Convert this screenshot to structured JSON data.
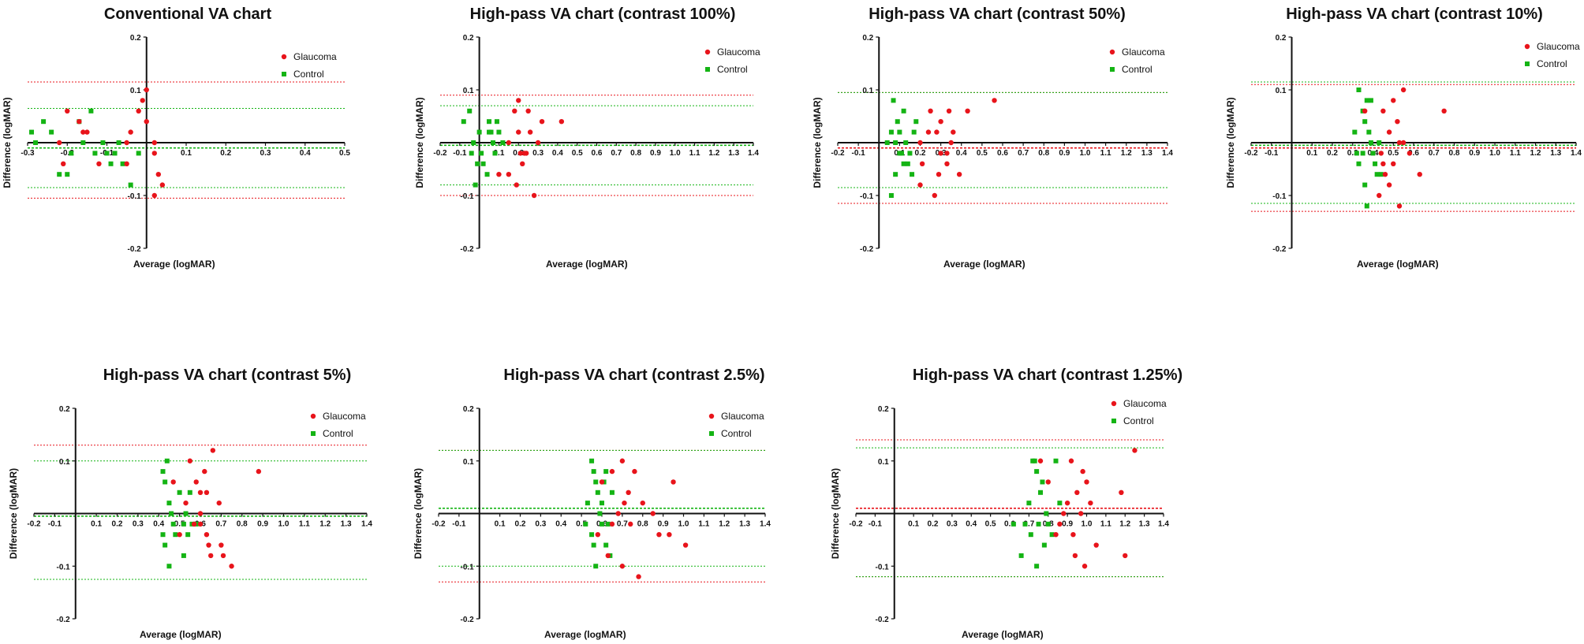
{
  "colors": {
    "glaucoma": "#e8141b",
    "control": "#14b414",
    "axis": "#111111"
  },
  "legend": {
    "glaucoma": "Glaucoma",
    "control": "Control"
  },
  "chart_data": [
    {
      "type": "scatter",
      "title": "Conventional VA chart",
      "xlabel": "Average (logMAR)",
      "ylabel": "Difference (logMAR)",
      "xlim": [
        -0.3,
        0.5
      ],
      "ylim": [
        -0.2,
        0.2
      ],
      "xticks": [
        "-0.3",
        "-0.2",
        "-0.1",
        "0.1",
        "0.2",
        "0.3",
        "0.4",
        "0.5"
      ],
      "yticks": [
        "-0.2",
        "-0.1",
        "0.1",
        "0.2"
      ],
      "glaucoma_points": [
        [
          0.0,
          0.1
        ],
        [
          -0.01,
          0.08
        ],
        [
          -0.02,
          0.06
        ],
        [
          0.0,
          0.04
        ],
        [
          -0.04,
          0.02
        ],
        [
          -0.05,
          0.0
        ],
        [
          0.02,
          0.0
        ],
        [
          0.02,
          -0.02
        ],
        [
          -0.05,
          -0.04
        ],
        [
          0.03,
          -0.06
        ],
        [
          0.04,
          -0.08
        ],
        [
          0.02,
          -0.1
        ],
        [
          -0.2,
          0.06
        ],
        [
          -0.17,
          0.04
        ],
        [
          -0.15,
          0.02
        ],
        [
          -0.21,
          -0.04
        ],
        [
          -0.12,
          -0.04
        ],
        [
          -0.16,
          0.02
        ],
        [
          -0.22,
          0.0
        ]
      ],
      "control_points": [
        [
          -0.29,
          0.02
        ],
        [
          -0.28,
          0.0
        ],
        [
          -0.26,
          0.04
        ],
        [
          -0.24,
          0.02
        ],
        [
          -0.22,
          -0.06
        ],
        [
          -0.2,
          -0.06
        ],
        [
          -0.19,
          -0.02
        ],
        [
          -0.17,
          0.04
        ],
        [
          -0.16,
          0.0
        ],
        [
          -0.14,
          0.06
        ],
        [
          -0.13,
          -0.02
        ],
        [
          -0.11,
          0.0
        ],
        [
          -0.09,
          -0.04
        ],
        [
          -0.08,
          -0.02
        ],
        [
          -0.06,
          -0.04
        ],
        [
          -0.04,
          -0.08
        ],
        [
          -0.02,
          -0.02
        ],
        [
          -0.1,
          -0.02
        ],
        [
          -0.07,
          0.0
        ]
      ],
      "glaucoma_mean": 0.0,
      "glaucoma_loa": [
        0.115,
        -0.105
      ],
      "control_mean": -0.01,
      "control_loa": [
        0.065,
        -0.085
      ],
      "legend_position": "top-right"
    },
    {
      "type": "scatter",
      "title": "High-pass VA chart (contrast 100%)",
      "xlabel": "Average (logMAR)",
      "ylabel": "Difference (logMAR)",
      "xlim": [
        -0.2,
        1.4
      ],
      "ylim": [
        -0.2,
        0.2
      ],
      "xticks": [
        "-0.2",
        "-0.1",
        "0.1",
        "0.2",
        "0.3",
        "0.4",
        "0.5",
        "0.6",
        "0.7",
        "0.8",
        "0.9",
        "1.0",
        "1.1",
        "1.2",
        "1.3",
        "1.4"
      ],
      "yticks": [
        "-0.2",
        "-0.1",
        "0.1",
        "0.2"
      ],
      "glaucoma_points": [
        [
          0.2,
          0.08
        ],
        [
          0.18,
          0.06
        ],
        [
          0.25,
          0.06
        ],
        [
          0.32,
          0.04
        ],
        [
          0.42,
          0.04
        ],
        [
          0.2,
          0.02
        ],
        [
          0.26,
          0.02
        ],
        [
          0.3,
          0.0
        ],
        [
          0.15,
          0.0
        ],
        [
          0.21,
          -0.02
        ],
        [
          0.24,
          -0.02
        ],
        [
          0.1,
          -0.06
        ],
        [
          0.19,
          -0.08
        ],
        [
          0.28,
          -0.1
        ],
        [
          0.22,
          -0.04
        ],
        [
          0.15,
          -0.06
        ],
        [
          0.23,
          -0.02
        ]
      ],
      "control_points": [
        [
          -0.08,
          0.04
        ],
        [
          -0.05,
          0.06
        ],
        [
          -0.03,
          0.0
        ],
        [
          -0.04,
          -0.02
        ],
        [
          -0.02,
          -0.08
        ],
        [
          0.0,
          0.02
        ],
        [
          0.02,
          -0.04
        ],
        [
          0.04,
          -0.06
        ],
        [
          0.05,
          0.04
        ],
        [
          0.06,
          0.02
        ],
        [
          0.07,
          0.0
        ],
        [
          0.08,
          -0.02
        ],
        [
          0.1,
          0.02
        ],
        [
          0.12,
          0.0
        ],
        [
          0.05,
          0.02
        ],
        [
          0.09,
          0.04
        ],
        [
          0.01,
          -0.02
        ],
        [
          -0.01,
          -0.04
        ]
      ],
      "glaucoma_mean": 0.0,
      "glaucoma_loa": [
        0.09,
        -0.1
      ],
      "control_mean": -0.005,
      "control_loa": [
        0.07,
        -0.08
      ],
      "legend_position": "top-right"
    },
    {
      "type": "scatter",
      "title": "High-pass VA chart (contrast 50%)",
      "xlabel": "Average (logMAR)",
      "ylabel": "Difference (logMAR)",
      "xlim": [
        -0.2,
        1.4
      ],
      "ylim": [
        -0.2,
        0.2
      ],
      "xticks": [
        "-0.2",
        "-0.1",
        "0.1",
        "0.2",
        "0.3",
        "0.4",
        "0.5",
        "0.6",
        "0.7",
        "0.8",
        "0.9",
        "1.0",
        "1.1",
        "1.2",
        "1.3",
        "1.4"
      ],
      "yticks": [
        "-0.2",
        "-0.1",
        "0.1",
        "0.2"
      ],
      "glaucoma_points": [
        [
          0.56,
          0.08
        ],
        [
          0.43,
          0.06
        ],
        [
          0.34,
          0.06
        ],
        [
          0.25,
          0.06
        ],
        [
          0.3,
          0.04
        ],
        [
          0.28,
          0.02
        ],
        [
          0.35,
          0.0
        ],
        [
          0.33,
          -0.02
        ],
        [
          0.3,
          -0.02
        ],
        [
          0.21,
          -0.04
        ],
        [
          0.33,
          -0.04
        ],
        [
          0.39,
          -0.06
        ],
        [
          0.2,
          -0.08
        ],
        [
          0.27,
          -0.1
        ],
        [
          0.24,
          0.02
        ],
        [
          0.2,
          0.0
        ],
        [
          0.36,
          0.02
        ],
        [
          0.29,
          -0.06
        ]
      ],
      "control_points": [
        [
          0.07,
          0.08
        ],
        [
          0.06,
          0.02
        ],
        [
          0.08,
          0.0
        ],
        [
          0.09,
          0.04
        ],
        [
          0.1,
          0.02
        ],
        [
          0.11,
          -0.02
        ],
        [
          0.12,
          0.06
        ],
        [
          0.13,
          0.0
        ],
        [
          0.14,
          -0.04
        ],
        [
          0.15,
          -0.02
        ],
        [
          0.16,
          -0.06
        ],
        [
          0.06,
          -0.1
        ],
        [
          0.08,
          -0.06
        ],
        [
          0.12,
          -0.04
        ],
        [
          0.18,
          0.04
        ],
        [
          0.17,
          0.02
        ],
        [
          0.1,
          -0.02
        ],
        [
          0.04,
          0.0
        ]
      ],
      "glaucoma_mean": -0.01,
      "glaucoma_loa": [
        0.095,
        -0.115
      ],
      "control_mean": 0.0,
      "control_loa": [
        0.095,
        -0.085
      ],
      "legend_position": "top-right"
    },
    {
      "type": "scatter",
      "title": "High-pass VA chart (contrast 10%)",
      "xlabel": "Average (logMAR)",
      "ylabel": "Difference (logMAR)",
      "xlim": [
        -0.2,
        1.4
      ],
      "ylim": [
        -0.2,
        0.2
      ],
      "xticks": [
        "-0.2",
        "-0.1",
        "0.1",
        "0.2",
        "0.3",
        "0.4",
        "0.5",
        "0.6",
        "0.7",
        "0.8",
        "0.9",
        "1.0",
        "1.1",
        "1.2",
        "1.3",
        "1.4"
      ],
      "yticks": [
        "-0.2",
        "-0.1",
        "0.1",
        "0.2"
      ],
      "glaucoma_points": [
        [
          0.55,
          0.1
        ],
        [
          0.75,
          0.06
        ],
        [
          0.5,
          0.08
        ],
        [
          0.52,
          0.04
        ],
        [
          0.45,
          0.06
        ],
        [
          0.48,
          0.02
        ],
        [
          0.53,
          0.0
        ],
        [
          0.55,
          0.0
        ],
        [
          0.45,
          -0.04
        ],
        [
          0.5,
          -0.04
        ],
        [
          0.46,
          -0.06
        ],
        [
          0.63,
          -0.06
        ],
        [
          0.48,
          -0.08
        ],
        [
          0.43,
          -0.1
        ],
        [
          0.53,
          -0.12
        ],
        [
          0.36,
          0.06
        ],
        [
          0.44,
          -0.02
        ],
        [
          0.58,
          -0.02
        ]
      ],
      "control_points": [
        [
          0.31,
          0.02
        ],
        [
          0.33,
          0.1
        ],
        [
          0.35,
          0.06
        ],
        [
          0.36,
          0.04
        ],
        [
          0.37,
          0.08
        ],
        [
          0.38,
          0.02
        ],
        [
          0.39,
          0.0
        ],
        [
          0.32,
          -0.02
        ],
        [
          0.33,
          -0.04
        ],
        [
          0.36,
          -0.08
        ],
        [
          0.37,
          -0.12
        ],
        [
          0.4,
          -0.02
        ],
        [
          0.41,
          -0.04
        ],
        [
          0.42,
          -0.06
        ],
        [
          0.43,
          0.0
        ],
        [
          0.39,
          0.08
        ],
        [
          0.35,
          -0.02
        ],
        [
          0.44,
          -0.06
        ]
      ],
      "glaucoma_mean": -0.01,
      "glaucoma_loa": [
        0.11,
        -0.13
      ],
      "control_mean": -0.005,
      "control_loa": [
        0.115,
        -0.115
      ],
      "legend_position": "top-right"
    },
    {
      "type": "scatter",
      "title": "High-pass VA chart (contrast 5%)",
      "xlabel": "Average (logMAR)",
      "ylabel": "Difference (logMAR)",
      "xlim": [
        -0.2,
        1.4
      ],
      "ylim": [
        -0.2,
        0.2
      ],
      "xticks": [
        "-0.2",
        "-0.1",
        "0.1",
        "0.2",
        "0.3",
        "0.4",
        "0.5",
        "0.6",
        "0.7",
        "0.8",
        "0.9",
        "1.0",
        "1.1",
        "1.2",
        "1.3",
        "1.4"
      ],
      "yticks": [
        "-0.2",
        "-0.1",
        "0.1",
        "0.2"
      ],
      "glaucoma_points": [
        [
          0.66,
          0.12
        ],
        [
          0.88,
          0.08
        ],
        [
          0.55,
          0.1
        ],
        [
          0.62,
          0.08
        ],
        [
          0.58,
          0.06
        ],
        [
          0.6,
          0.04
        ],
        [
          0.63,
          0.04
        ],
        [
          0.69,
          0.02
        ],
        [
          0.53,
          0.02
        ],
        [
          0.57,
          -0.02
        ],
        [
          0.6,
          -0.02
        ],
        [
          0.63,
          -0.04
        ],
        [
          0.64,
          -0.06
        ],
        [
          0.7,
          -0.06
        ],
        [
          0.65,
          -0.08
        ],
        [
          0.71,
          -0.08
        ],
        [
          0.75,
          -0.1
        ],
        [
          0.47,
          0.06
        ],
        [
          0.5,
          -0.04
        ],
        [
          0.6,
          0.0
        ]
      ],
      "control_points": [
        [
          0.42,
          0.08
        ],
        [
          0.44,
          0.1
        ],
        [
          0.43,
          0.06
        ],
        [
          0.45,
          0.02
        ],
        [
          0.46,
          0.0
        ],
        [
          0.47,
          -0.02
        ],
        [
          0.48,
          -0.04
        ],
        [
          0.5,
          0.04
        ],
        [
          0.52,
          -0.02
        ],
        [
          0.53,
          0.0
        ],
        [
          0.55,
          0.04
        ],
        [
          0.56,
          -0.02
        ],
        [
          0.42,
          -0.04
        ],
        [
          0.43,
          -0.06
        ],
        [
          0.45,
          -0.1
        ],
        [
          0.52,
          -0.08
        ],
        [
          0.54,
          -0.04
        ],
        [
          0.58,
          -0.02
        ]
      ],
      "glaucoma_mean": 0.0,
      "glaucoma_loa": [
        0.13,
        -0.125
      ],
      "control_mean": -0.005,
      "control_loa": [
        0.1,
        -0.125
      ],
      "legend_position": "top-right"
    },
    {
      "type": "scatter",
      "title": "High-pass VA chart (contrast 2.5%)",
      "xlabel": "Average (logMAR)",
      "ylabel": "Difference (logMAR)",
      "xlim": [
        -0.2,
        1.4
      ],
      "ylim": [
        -0.2,
        0.2
      ],
      "xticks": [
        "-0.2",
        "-0.1",
        "0.1",
        "0.2",
        "0.3",
        "0.4",
        "0.5",
        "0.6",
        "0.7",
        "0.8",
        "0.9",
        "1.0",
        "1.1",
        "1.2",
        "1.3",
        "1.4"
      ],
      "yticks": [
        "-0.2",
        "-0.1",
        "0.1",
        "0.2"
      ],
      "glaucoma_points": [
        [
          0.7,
          0.1
        ],
        [
          0.95,
          0.06
        ],
        [
          0.65,
          0.08
        ],
        [
          0.76,
          0.08
        ],
        [
          0.6,
          0.06
        ],
        [
          0.73,
          0.04
        ],
        [
          0.71,
          0.02
        ],
        [
          0.8,
          0.02
        ],
        [
          0.68,
          0.0
        ],
        [
          0.85,
          0.0
        ],
        [
          0.65,
          -0.02
        ],
        [
          0.88,
          -0.04
        ],
        [
          0.93,
          -0.04
        ],
        [
          1.01,
          -0.06
        ],
        [
          0.63,
          -0.08
        ],
        [
          0.7,
          -0.1
        ],
        [
          0.78,
          -0.12
        ],
        [
          0.58,
          -0.04
        ],
        [
          0.74,
          -0.02
        ]
      ],
      "control_points": [
        [
          0.53,
          0.02
        ],
        [
          0.55,
          0.1
        ],
        [
          0.56,
          0.08
        ],
        [
          0.57,
          0.06
        ],
        [
          0.58,
          0.04
        ],
        [
          0.59,
          0.0
        ],
        [
          0.6,
          -0.02
        ],
        [
          0.61,
          0.06
        ],
        [
          0.62,
          0.08
        ],
        [
          0.63,
          -0.02
        ],
        [
          0.64,
          -0.08
        ],
        [
          0.55,
          -0.04
        ],
        [
          0.56,
          -0.06
        ],
        [
          0.57,
          -0.1
        ],
        [
          0.52,
          -0.02
        ],
        [
          0.6,
          0.02
        ],
        [
          0.65,
          0.04
        ],
        [
          0.62,
          -0.06
        ]
      ],
      "glaucoma_mean": 0.0,
      "glaucoma_loa": [
        0.12,
        -0.13
      ],
      "control_mean": 0.01,
      "control_loa": [
        0.12,
        -0.1
      ],
      "legend_position": "top-right"
    },
    {
      "type": "scatter",
      "title": "High-pass VA chart (contrast 1.25%)",
      "xlabel": "Average (logMAR)",
      "ylabel": "Difference (logMAR)",
      "xlim": [
        -0.2,
        1.4
      ],
      "ylim": [
        -0.2,
        0.2
      ],
      "xticks": [
        "-0.2",
        "-0.1",
        "0.1",
        "0.2",
        "0.3",
        "0.4",
        "0.5",
        "0.6",
        "0.7",
        "0.8",
        "0.9",
        "1.0",
        "1.1",
        "1.2",
        "1.3",
        "1.4"
      ],
      "yticks": [
        "-0.2",
        "-0.1",
        "0.1",
        "0.2"
      ],
      "glaucoma_points": [
        [
          1.25,
          0.12
        ],
        [
          0.92,
          0.1
        ],
        [
          0.98,
          0.08
        ],
        [
          1.0,
          0.06
        ],
        [
          0.95,
          0.04
        ],
        [
          1.18,
          0.04
        ],
        [
          0.9,
          0.02
        ],
        [
          1.02,
          0.02
        ],
        [
          0.88,
          0.0
        ],
        [
          0.97,
          0.0
        ],
        [
          0.86,
          -0.02
        ],
        [
          0.93,
          -0.04
        ],
        [
          1.05,
          -0.06
        ],
        [
          0.94,
          -0.08
        ],
        [
          1.2,
          -0.08
        ],
        [
          0.99,
          -0.1
        ],
        [
          0.8,
          0.06
        ],
        [
          0.84,
          -0.04
        ],
        [
          0.76,
          0.1
        ]
      ],
      "control_points": [
        [
          0.62,
          -0.02
        ],
        [
          0.66,
          -0.08
        ],
        [
          0.7,
          0.02
        ],
        [
          0.72,
          0.1
        ],
        [
          0.74,
          0.08
        ],
        [
          0.75,
          -0.02
        ],
        [
          0.76,
          0.04
        ],
        [
          0.78,
          -0.06
        ],
        [
          0.79,
          0.0
        ],
        [
          0.8,
          -0.02
        ],
        [
          0.82,
          -0.04
        ],
        [
          0.84,
          0.1
        ],
        [
          0.86,
          0.02
        ],
        [
          0.74,
          -0.1
        ],
        [
          0.71,
          -0.04
        ],
        [
          0.77,
          0.06
        ],
        [
          0.73,
          0.1
        ],
        [
          0.68,
          -0.02
        ]
      ],
      "glaucoma_mean": 0.01,
      "glaucoma_loa": [
        0.14,
        -0.12
      ],
      "control_mean": 0.0,
      "control_loa": [
        0.125,
        -0.12
      ],
      "legend_position": "top-right"
    }
  ]
}
